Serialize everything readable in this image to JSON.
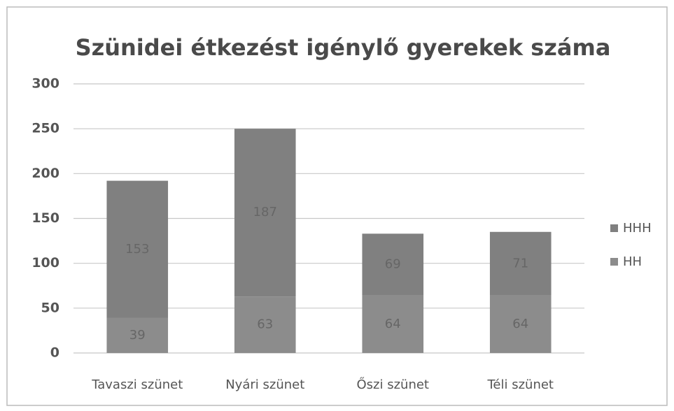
{
  "chart_data": {
    "type": "stacked_bar",
    "title": "Szünidei étkezést igénylő gyerekek száma",
    "categories": [
      "Tavaszi szünet",
      "Nyári szünet",
      "Őszi szünet",
      "Téli szünet"
    ],
    "series": [
      {
        "name": "HH",
        "color": "#8c8c8c",
        "values": [
          39,
          63,
          64,
          64
        ]
      },
      {
        "name": "HHH",
        "color": "#808080",
        "values": [
          153,
          187,
          69,
          71
        ]
      }
    ],
    "ylim": [
      0,
      300
    ],
    "yticks": [
      0,
      50,
      100,
      150,
      200,
      250,
      300
    ],
    "grid": true,
    "legend": "right"
  }
}
